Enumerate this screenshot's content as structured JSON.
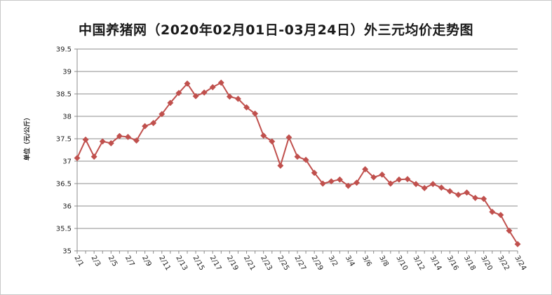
{
  "chart_data": {
    "type": "line",
    "title": "中国养猪网（2020年02月01日-03月24日）外三元均价走势图",
    "ylabel": "单位（元/公斤）",
    "xlabel": "",
    "ylim": [
      35,
      39.5
    ],
    "yticks": [
      "35",
      "35.5",
      "36",
      "36.5",
      "37",
      "37.5",
      "38",
      "38.5",
      "39",
      "39.5"
    ],
    "grid": "horizontal",
    "legend": "none",
    "x": [
      "2/1",
      "2/2",
      "2/3",
      "2/4",
      "2/5",
      "2/6",
      "2/7",
      "2/8",
      "2/9",
      "2/10",
      "2/11",
      "2/12",
      "2/13",
      "2/14",
      "2/15",
      "2/16",
      "2/17",
      "2/18",
      "2/19",
      "2/20",
      "2/21",
      "2/22",
      "2/23",
      "2/24",
      "2/25",
      "2/26",
      "2/27",
      "2/28",
      "2/29",
      "3/1",
      "3/2",
      "3/3",
      "3/4",
      "3/5",
      "3/6",
      "3/7",
      "3/8",
      "3/9",
      "3/10",
      "3/11",
      "3/12",
      "3/13",
      "3/14",
      "3/15",
      "3/16",
      "3/17",
      "3/18",
      "3/19",
      "3/20",
      "3/21",
      "3/22",
      "3/23",
      "3/24"
    ],
    "xtick_labels": [
      "2/1",
      "2/3",
      "2/5",
      "2/7",
      "2/9",
      "2/11",
      "2/13",
      "2/15",
      "2/17",
      "2/19",
      "2/21",
      "2/23",
      "2/25",
      "2/27",
      "2/29",
      "3/2",
      "3/4",
      "3/6",
      "3/8",
      "3/10",
      "3/12",
      "3/14",
      "3/16",
      "3/18",
      "3/20",
      "3/22",
      "3/24"
    ],
    "series": [
      {
        "color": "#c0504d",
        "values": [
          37.07,
          37.48,
          37.1,
          37.44,
          37.4,
          37.56,
          37.54,
          37.46,
          37.78,
          37.85,
          38.05,
          38.3,
          38.52,
          38.73,
          38.45,
          38.53,
          38.65,
          38.75,
          38.44,
          38.39,
          38.2,
          38.06,
          37.57,
          37.44,
          36.9,
          37.53,
          37.1,
          37.03,
          36.74,
          36.5,
          36.55,
          36.59,
          36.45,
          36.52,
          36.82,
          36.64,
          36.7,
          36.5,
          36.59,
          36.6,
          36.49,
          36.4,
          36.49,
          36.41,
          36.33,
          36.25,
          36.3,
          36.18,
          36.16,
          35.87,
          35.8,
          35.45,
          35.15
        ]
      }
    ]
  }
}
